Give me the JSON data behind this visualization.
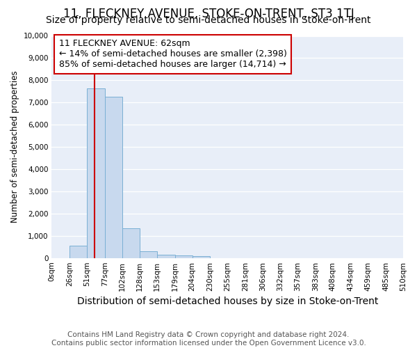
{
  "title": "11, FLECKNEY AVENUE, STOKE-ON-TRENT, ST3 1TJ",
  "subtitle": "Size of property relative to semi-detached houses in Stoke-on-Trent",
  "xlabel": "Distribution of semi-detached houses by size in Stoke-on-Trent",
  "ylabel": "Number of semi-detached properties",
  "footnote1": "Contains HM Land Registry data © Crown copyright and database right 2024.",
  "footnote2": "Contains public sector information licensed under the Open Government Licence v3.0.",
  "annotation_title": "11 FLECKNEY AVENUE: 62sqm",
  "annotation_line1": "← 14% of semi-detached houses are smaller (2,398)",
  "annotation_line2": "85% of semi-detached houses are larger (14,714) →",
  "property_size": 62,
  "bar_edges": [
    0,
    26,
    51,
    77,
    102,
    128,
    153,
    179,
    204,
    230,
    255,
    281,
    306,
    332,
    357,
    383,
    408,
    434,
    459,
    485,
    510
  ],
  "bar_heights": [
    0,
    550,
    7650,
    7250,
    1350,
    310,
    150,
    100,
    90,
    0,
    0,
    0,
    0,
    0,
    0,
    0,
    0,
    0,
    0,
    0
  ],
  "bar_color": "#c8d9ee",
  "bar_edge_color": "#7aafd4",
  "highlight_color": "#cc0000",
  "ylim": [
    0,
    10000
  ],
  "yticks": [
    0,
    1000,
    2000,
    3000,
    4000,
    5000,
    6000,
    7000,
    8000,
    9000,
    10000
  ],
  "xtick_labels": [
    "0sqm",
    "26sqm",
    "51sqm",
    "77sqm",
    "102sqm",
    "128sqm",
    "153sqm",
    "179sqm",
    "204sqm",
    "230sqm",
    "255sqm",
    "281sqm",
    "306sqm",
    "332sqm",
    "357sqm",
    "383sqm",
    "408sqm",
    "434sqm",
    "459sqm",
    "485sqm",
    "510sqm"
  ],
  "background_color": "#ffffff",
  "plot_bg_color": "#e8eef8",
  "annotation_box_color": "#ffffff",
  "annotation_box_edge": "#cc0000",
  "grid_color": "#ffffff",
  "title_fontsize": 12,
  "subtitle_fontsize": 10,
  "xlabel_fontsize": 10,
  "ylabel_fontsize": 8.5,
  "tick_fontsize": 7.5,
  "annotation_fontsize": 9,
  "footnote_fontsize": 7.5
}
